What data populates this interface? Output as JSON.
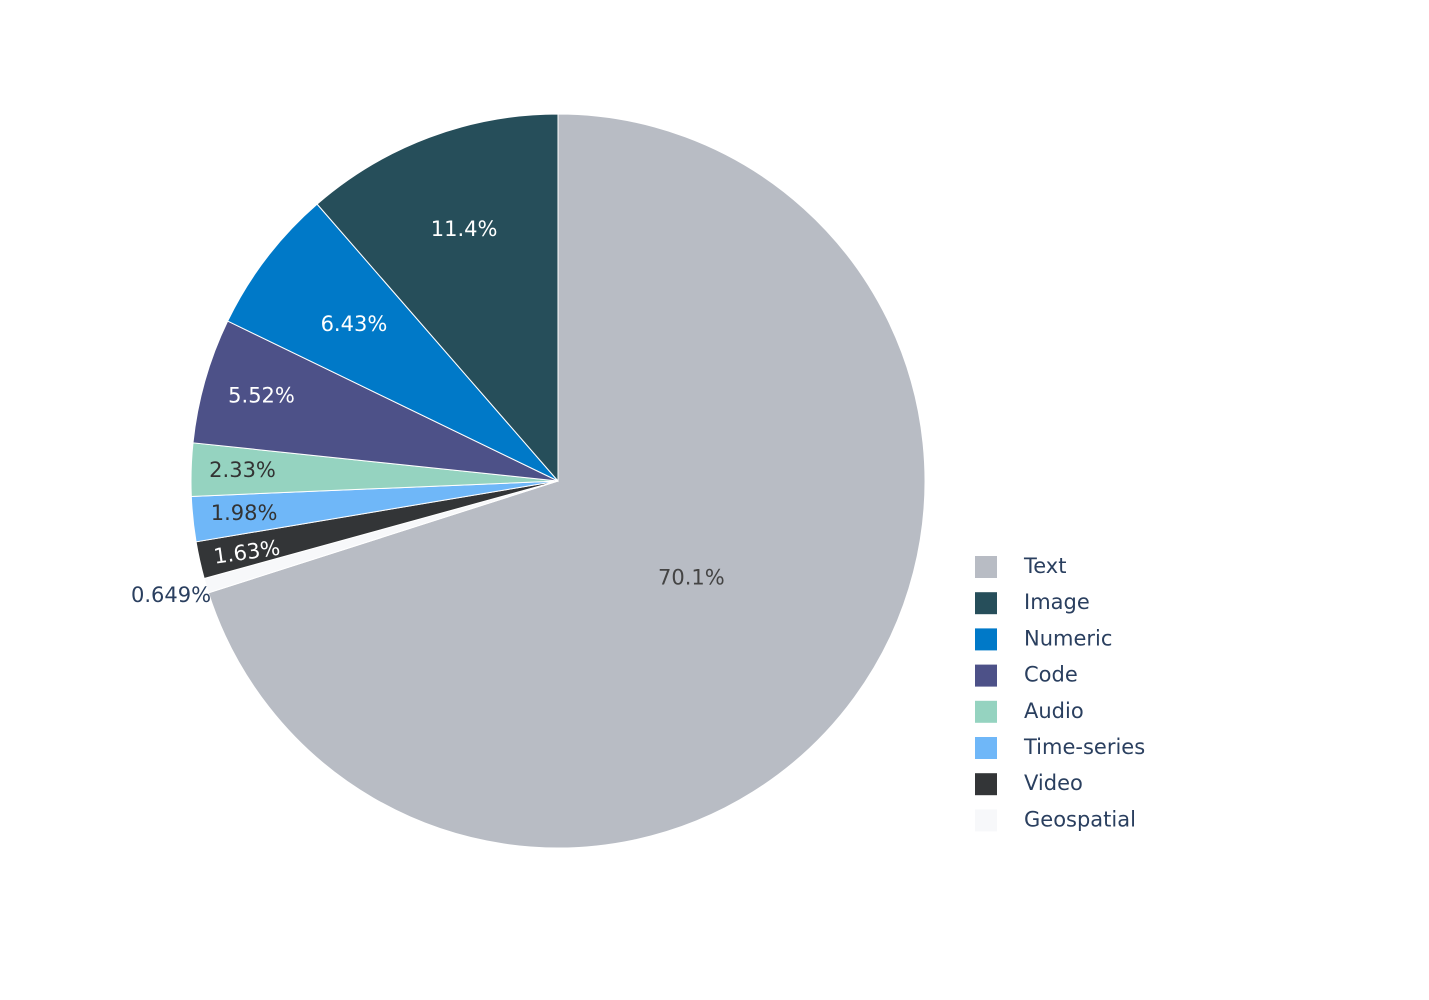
{
  "chart_data": {
    "type": "pie",
    "title": "",
    "start_angle_deg": 90,
    "direction": "clockwise",
    "legend_position": "right",
    "slices": [
      {
        "name": "Text",
        "percent": 70.1,
        "label": "70.1%",
        "color": "#b8bcc4",
        "label_color": "#444444"
      },
      {
        "name": "Geospatial",
        "percent": 0.649,
        "label": "0.649%",
        "color": "#f7f8fa",
        "label_color": "#2a3f5f"
      },
      {
        "name": "Video",
        "percent": 1.63,
        "label": "1.63%",
        "color": "#333537",
        "label_color": "#ffffff"
      },
      {
        "name": "Time-series",
        "percent": 1.98,
        "label": "1.98%",
        "color": "#6fb7f8",
        "label_color": "#333333"
      },
      {
        "name": "Audio",
        "percent": 2.33,
        "label": "2.33%",
        "color": "#95d3c0",
        "label_color": "#333333"
      },
      {
        "name": "Code",
        "percent": 5.52,
        "label": "5.52%",
        "color": "#4d5188",
        "label_color": "#ffffff"
      },
      {
        "name": "Numeric",
        "percent": 6.43,
        "label": "6.43%",
        "color": "#0079c8",
        "label_color": "#ffffff"
      },
      {
        "name": "Image",
        "percent": 11.4,
        "label": "11.4%",
        "color": "#264e5a",
        "label_color": "#ffffff"
      }
    ],
    "legend": [
      "Text",
      "Image",
      "Numeric",
      "Code",
      "Audio",
      "Time-series",
      "Video",
      "Geospatial"
    ]
  }
}
